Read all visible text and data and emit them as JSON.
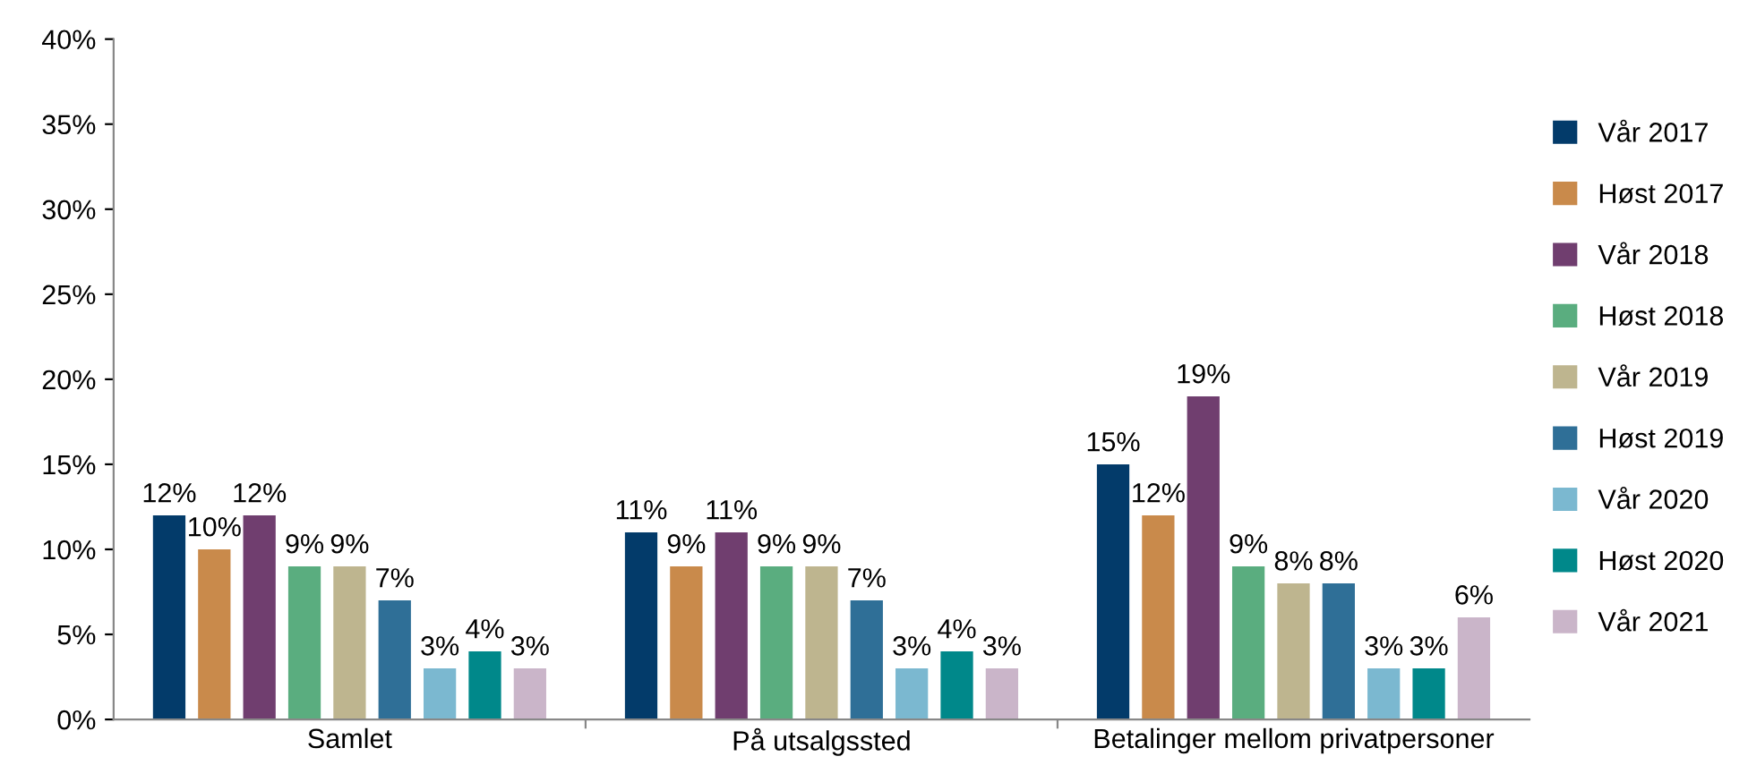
{
  "chart_data": {
    "type": "bar",
    "categories": [
      "Samlet",
      "På utsalgssted",
      "Betalinger mellom privatpersoner"
    ],
    "series": [
      {
        "name": "Vår 2017",
        "color": "#033b6a",
        "values": [
          12,
          11,
          15
        ],
        "value_labels": [
          "12%",
          "11%",
          "15%"
        ]
      },
      {
        "name": "Høst 2017",
        "color": "#c98a4b",
        "values": [
          10,
          9,
          12
        ],
        "value_labels": [
          "10%",
          "9%",
          "12%"
        ]
      },
      {
        "name": "Vår 2018",
        "color": "#703e6f",
        "values": [
          12,
          11,
          19
        ],
        "value_labels": [
          "12%",
          "11%",
          "19%"
        ]
      },
      {
        "name": "Høst 2018",
        "color": "#5aad7f",
        "values": [
          9,
          9,
          9
        ],
        "value_labels": [
          "9%",
          "9%",
          "9%"
        ]
      },
      {
        "name": "Vår 2019",
        "color": "#beb58f",
        "values": [
          9,
          9,
          8
        ],
        "value_labels": [
          "9%",
          "9%",
          "8%"
        ]
      },
      {
        "name": "Høst 2019",
        "color": "#2f6f97",
        "values": [
          7,
          7,
          8
        ],
        "value_labels": [
          "7%",
          "7%",
          "8%"
        ]
      },
      {
        "name": "Vår 2020",
        "color": "#7bb8d0",
        "values": [
          3,
          3,
          3
        ],
        "value_labels": [
          "3%",
          "3%",
          "3%"
        ]
      },
      {
        "name": "Høst 2020",
        "color": "#00888a",
        "values": [
          4,
          4,
          3
        ],
        "value_labels": [
          "4%",
          "4%",
          "3%"
        ]
      },
      {
        "name": "Vår 2021",
        "color": "#cab5c9",
        "values": [
          3,
          3,
          6
        ],
        "value_labels": [
          "3%",
          "3%",
          "6%"
        ]
      }
    ],
    "ylim": [
      0,
      40
    ],
    "yticks": [
      {
        "value": 0,
        "label": "0%"
      },
      {
        "value": 5,
        "label": "5%"
      },
      {
        "value": 10,
        "label": "10%"
      },
      {
        "value": 15,
        "label": "15%"
      },
      {
        "value": 20,
        "label": "20%"
      },
      {
        "value": 25,
        "label": "25%"
      },
      {
        "value": 30,
        "label": "30%"
      },
      {
        "value": 35,
        "label": "35%"
      },
      {
        "value": 40,
        "label": "40%"
      }
    ],
    "grid": false,
    "legend": "right"
  }
}
